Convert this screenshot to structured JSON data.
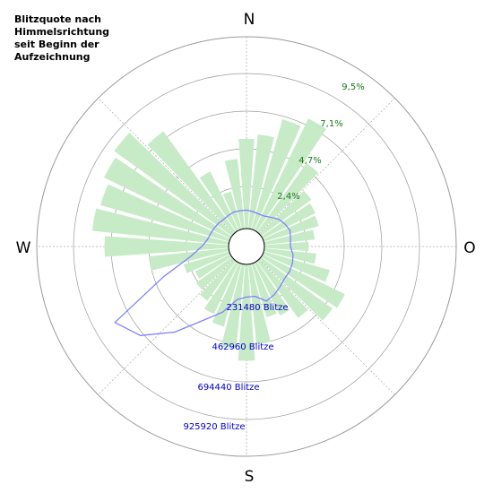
{
  "chart_data": {
    "type": "polar",
    "title": [
      "Blitzquote nach",
      "Himmelsrichtung",
      "seit Beginn der",
      "Aufzeichnung"
    ],
    "directions": [
      "N",
      "O",
      "S",
      "W"
    ],
    "percent_ticks": [
      {
        "value": 2.4,
        "label": "2,4%"
      },
      {
        "value": 4.7,
        "label": "4,7%"
      },
      {
        "value": 7.1,
        "label": "7,1%"
      },
      {
        "value": 9.5,
        "label": "9,5%"
      }
    ],
    "count_ticks": [
      {
        "value": 231480,
        "label": "231480 Blitze"
      },
      {
        "value": 462960,
        "label": "462960 Blitze"
      },
      {
        "value": 694440,
        "label": "694440 Blitze"
      },
      {
        "value": 925920,
        "label": "925920 Blitze"
      }
    ],
    "series": [
      {
        "kind": "percent-bars",
        "color": "#c6ebc6",
        "azimuth_deg": [
          0,
          10,
          20,
          30,
          40,
          50,
          60,
          70,
          80,
          90,
          100,
          110,
          120,
          130,
          140,
          150,
          160,
          170,
          180,
          190,
          200,
          210,
          220,
          230,
          240,
          250,
          260,
          270,
          280,
          290,
          300,
          310,
          320,
          330,
          340,
          350
        ],
        "values": [
          5.5,
          5.8,
          7.0,
          7.6,
          5.2,
          3.8,
          3.6,
          3.5,
          3.1,
          2.7,
          3.2,
          4.2,
          5.6,
          5.4,
          4.3,
          3.6,
          3.4,
          4.9,
          5.9,
          5.2,
          4.0,
          3.5,
          3.0,
          2.7,
          2.4,
          2.9,
          4.9,
          7.6,
          8.4,
          8.2,
          8.6,
          8.9,
          7.6,
          4.0,
          2.4,
          4.3
        ]
      },
      {
        "kind": "count-line",
        "color": "#8080ff",
        "azimuth_deg": [
          0,
          10,
          20,
          30,
          40,
          50,
          60,
          70,
          80,
          90,
          100,
          110,
          120,
          130,
          140,
          150,
          160,
          170,
          180,
          190,
          200,
          210,
          220,
          230,
          240,
          250,
          260,
          270,
          280,
          290,
          300,
          310,
          320,
          330,
          340,
          350
        ],
        "values": [
          110000,
          105000,
          100000,
          103000,
          120000,
          145000,
          160000,
          170000,
          160000,
          155000,
          175000,
          185000,
          190000,
          190000,
          205000,
          225000,
          240000,
          195000,
          195000,
          215000,
          310000,
          400000,
          560000,
          720000,
          800000,
          420000,
          230000,
          160000,
          130000,
          120000,
          115000,
          110000,
          105000,
          108000,
          112000,
          110000
        ]
      }
    ],
    "grid": true
  }
}
